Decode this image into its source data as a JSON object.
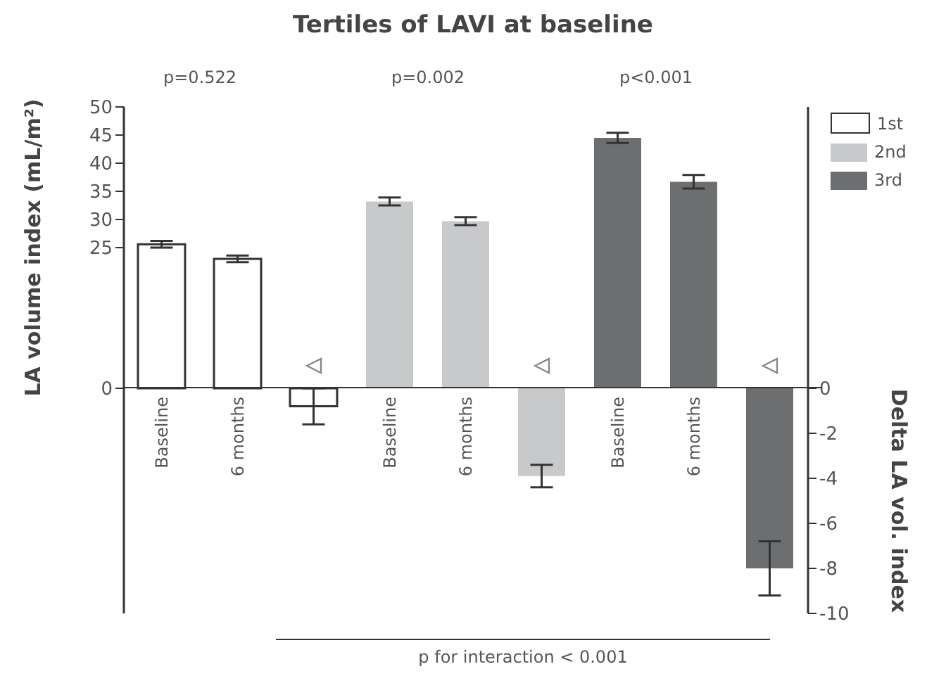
{
  "chart_data": {
    "type": "bar",
    "title": "Tertiles of LAVI at baseline",
    "ylabel": "LA volume index (mL/m²)",
    "y2label": "Delta LA vol. index",
    "categories": [
      "Baseline",
      "6 months",
      null,
      "Baseline",
      "6 months",
      null,
      "Baseline",
      "6 months",
      null
    ],
    "series": [
      {
        "name": "1st",
        "color": "#ffffff",
        "values": [
          25.6,
          23.0,
          null,
          null,
          null,
          null,
          null,
          null,
          null
        ],
        "errors": [
          0.6,
          0.6,
          null,
          null,
          null,
          null,
          null,
          null,
          null
        ]
      },
      {
        "name": "2nd",
        "color": "#c8c9cb",
        "values": [
          null,
          null,
          null,
          33.2,
          29.7,
          null,
          null,
          null,
          null
        ],
        "errors": [
          null,
          null,
          null,
          0.7,
          0.7,
          null,
          null,
          null,
          null
        ]
      },
      {
        "name": "3rd",
        "color": "#6d6e70",
        "values": [
          null,
          null,
          null,
          null,
          null,
          null,
          44.5,
          36.7,
          null
        ],
        "errors": [
          null,
          null,
          null,
          null,
          null,
          null,
          0.9,
          1.2,
          null
        ]
      },
      {
        "axis": "y2",
        "color": "#ffffff",
        "values": [
          null,
          null,
          -0.8,
          null,
          null,
          null,
          null,
          null,
          null
        ],
        "errors": [
          null,
          null,
          0.8,
          null,
          null,
          null,
          null,
          null,
          null
        ]
      },
      {
        "axis": "y2",
        "color": "#c8c9cb",
        "values": [
          null,
          null,
          null,
          null,
          null,
          -3.9,
          null,
          null,
          null
        ],
        "errors": [
          null,
          null,
          null,
          null,
          null,
          0.5,
          null,
          null,
          null
        ]
      },
      {
        "axis": "y2",
        "color": "#6d6e70",
        "values": [
          null,
          null,
          null,
          null,
          null,
          null,
          null,
          null,
          -8.0
        ],
        "errors": [
          null,
          null,
          null,
          null,
          null,
          null,
          null,
          null,
          1.2
        ]
      }
    ],
    "ylim": [
      -40,
      50
    ],
    "yticks": [
      0,
      25,
      30,
      35,
      40,
      45,
      50
    ],
    "y2lim": [
      -10,
      12.5
    ],
    "y2ticks": [
      0,
      -2,
      -4,
      -6,
      -8,
      -10
    ],
    "legend": "top right",
    "annotations": [
      "p=0.522",
      "p=0.002",
      "p<0.001",
      "p for interaction < 0.001"
    ]
  }
}
